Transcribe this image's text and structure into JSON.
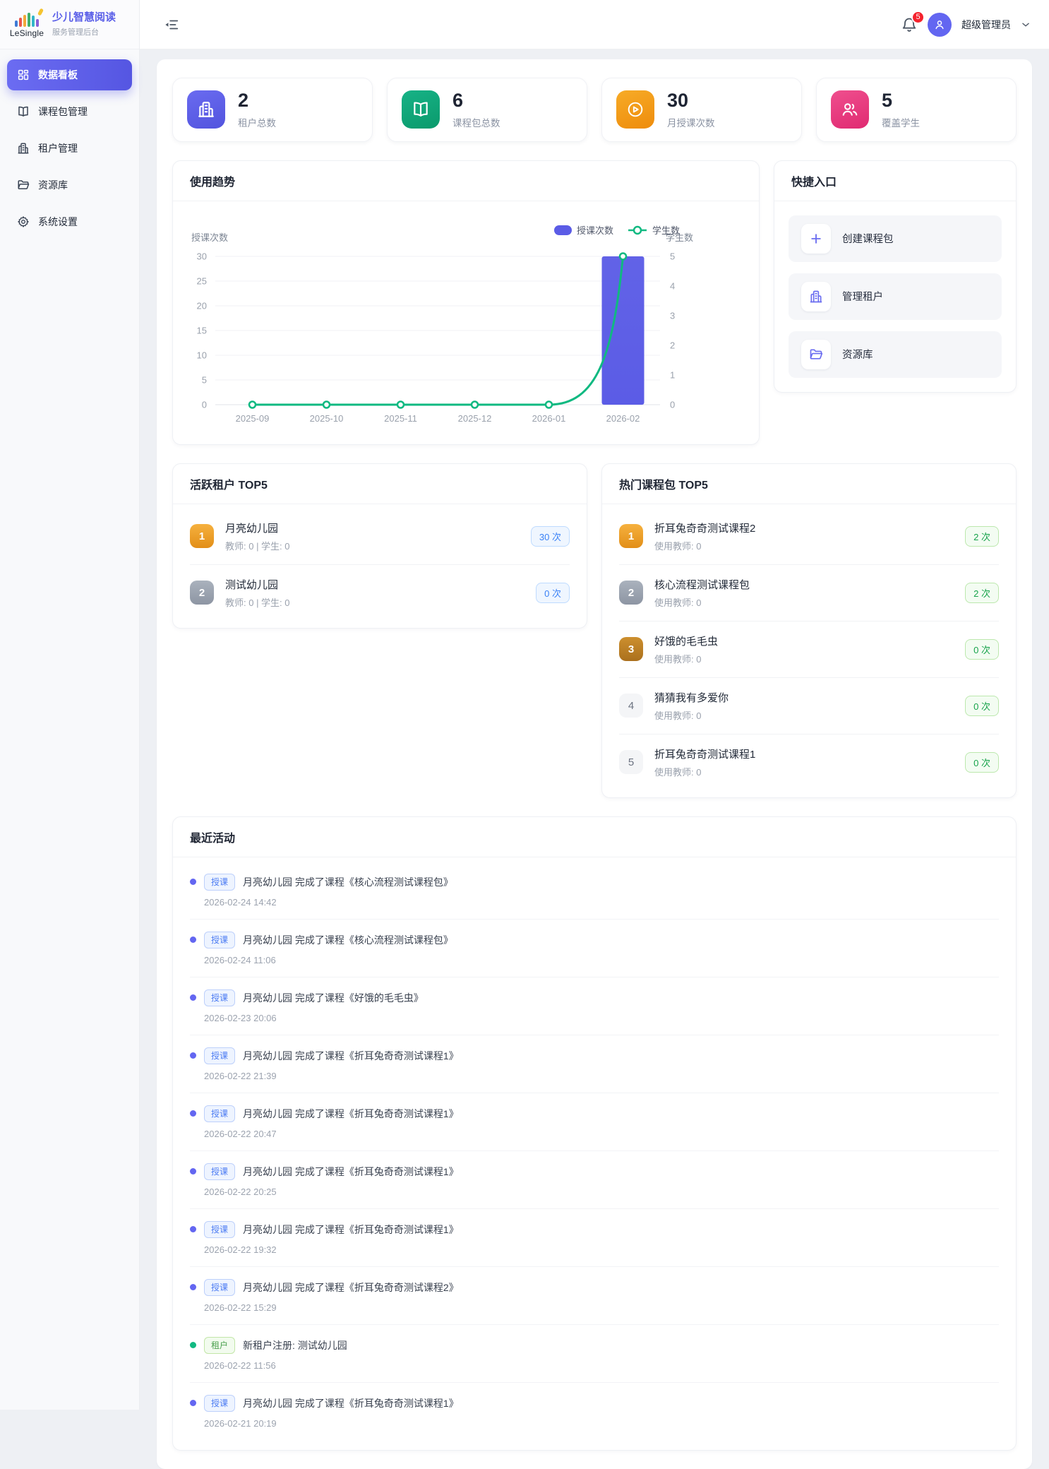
{
  "sidebar": {
    "logo_text": "LeSingle",
    "app_title": "少儿智慧阅读",
    "app_subtitle": "服务管理后台",
    "items": [
      {
        "label": "数据看板",
        "icon": "dashboard",
        "active": true
      },
      {
        "label": "课程包管理",
        "icon": "book",
        "active": false
      },
      {
        "label": "租户管理",
        "icon": "building",
        "active": false
      },
      {
        "label": "资源库",
        "icon": "folder",
        "active": false
      },
      {
        "label": "系统设置",
        "icon": "gear",
        "active": false
      }
    ]
  },
  "header": {
    "notification_count": "5",
    "user_name": "超级管理员"
  },
  "stats": [
    {
      "value": "2",
      "label": "租户总数",
      "icon": "building",
      "color": "#6a6bf0",
      "color2": "#5254de"
    },
    {
      "value": "6",
      "label": "课程包总数",
      "icon": "book",
      "color": "#17b286",
      "color2": "#0b9a6c"
    },
    {
      "value": "30",
      "label": "月授课次数",
      "icon": "play",
      "color": "#f7ab27",
      "color2": "#ee8c0c"
    },
    {
      "value": "5",
      "label": "覆盖学生",
      "icon": "users",
      "color": "#ef4f8e",
      "color2": "#e02a71"
    }
  ],
  "trend": {
    "title": "使用趋势"
  },
  "chart_data": {
    "type": "bar",
    "x": [
      "2025-09",
      "2025-10",
      "2025-11",
      "2025-12",
      "2026-01",
      "2026-02"
    ],
    "series": [
      {
        "name": "授课次数",
        "type": "bar",
        "axis": "left",
        "color": "#5b5ce6",
        "values": [
          0,
          0,
          0,
          0,
          0,
          30
        ]
      },
      {
        "name": "学生数",
        "type": "line",
        "axis": "right",
        "color": "#10b981",
        "values": [
          0,
          0,
          0,
          0,
          0,
          5
        ]
      }
    ],
    "left_axis": {
      "name": "授课次数",
      "min": 0,
      "max": 30,
      "ticks": [
        0,
        5,
        10,
        15,
        20,
        25,
        30
      ]
    },
    "right_axis": {
      "name": "学生数",
      "min": 0,
      "max": 5,
      "ticks": [
        0,
        1,
        2,
        3,
        4,
        5
      ]
    },
    "grid": true,
    "legend_position": "top-right"
  },
  "quick_entry": {
    "title": "快捷入口",
    "items": [
      {
        "label": "创建课程包",
        "icon": "plus"
      },
      {
        "label": "管理租户",
        "icon": "building"
      },
      {
        "label": "资源库",
        "icon": "folder"
      }
    ]
  },
  "active_tenants": {
    "title": "活跃租户 TOP5",
    "items": [
      {
        "rank": "1",
        "name": "月亮幼儿园",
        "meta": "教师: 0 | 学生: 0",
        "count": "30 次"
      },
      {
        "rank": "2",
        "name": "测试幼儿园",
        "meta": "教师: 0 | 学生: 0",
        "count": "0 次"
      }
    ]
  },
  "hot_packages": {
    "title": "热门课程包 TOP5",
    "items": [
      {
        "rank": "1",
        "name": "折耳兔奇奇测试课程2",
        "meta": "使用教师: 0",
        "count": "2 次"
      },
      {
        "rank": "2",
        "name": "核心流程测试课程包",
        "meta": "使用教师: 0",
        "count": "2 次"
      },
      {
        "rank": "3",
        "name": "好饿的毛毛虫",
        "meta": "使用教师: 0",
        "count": "0 次"
      },
      {
        "rank": "4",
        "name": "猜猜我有多爱你",
        "meta": "使用教师: 0",
        "count": "0 次"
      },
      {
        "rank": "5",
        "name": "折耳兔奇奇测试课程1",
        "meta": "使用教师: 0",
        "count": "0 次"
      }
    ]
  },
  "recent_activity": {
    "title": "最近活动",
    "items": [
      {
        "tag": "授课",
        "kind": "blue",
        "text": "月亮幼儿园 完成了课程《核心流程测试课程包》",
        "time": "2026-02-24 14:42"
      },
      {
        "tag": "授课",
        "kind": "blue",
        "text": "月亮幼儿园 完成了课程《核心流程测试课程包》",
        "time": "2026-02-24 11:06"
      },
      {
        "tag": "授课",
        "kind": "blue",
        "text": "月亮幼儿园 完成了课程《好饿的毛毛虫》",
        "time": "2026-02-23 20:06"
      },
      {
        "tag": "授课",
        "kind": "blue",
        "text": "月亮幼儿园 完成了课程《折耳兔奇奇测试课程1》",
        "time": "2026-02-22 21:39"
      },
      {
        "tag": "授课",
        "kind": "blue",
        "text": "月亮幼儿园 完成了课程《折耳兔奇奇测试课程1》",
        "time": "2026-02-22 20:47"
      },
      {
        "tag": "授课",
        "kind": "blue",
        "text": "月亮幼儿园 完成了课程《折耳兔奇奇测试课程1》",
        "time": "2026-02-22 20:25"
      },
      {
        "tag": "授课",
        "kind": "blue",
        "text": "月亮幼儿园 完成了课程《折耳兔奇奇测试课程1》",
        "time": "2026-02-22 19:32"
      },
      {
        "tag": "授课",
        "kind": "blue",
        "text": "月亮幼儿园 完成了课程《折耳兔奇奇测试课程2》",
        "time": "2026-02-22 15:29"
      },
      {
        "tag": "租户",
        "kind": "green",
        "text": "新租户注册: 测试幼儿园",
        "time": "2026-02-22 11:56"
      },
      {
        "tag": "授课",
        "kind": "blue",
        "text": "月亮幼儿园 完成了课程《折耳兔奇奇测试课程1》",
        "time": "2026-02-21 20:19"
      }
    ]
  }
}
